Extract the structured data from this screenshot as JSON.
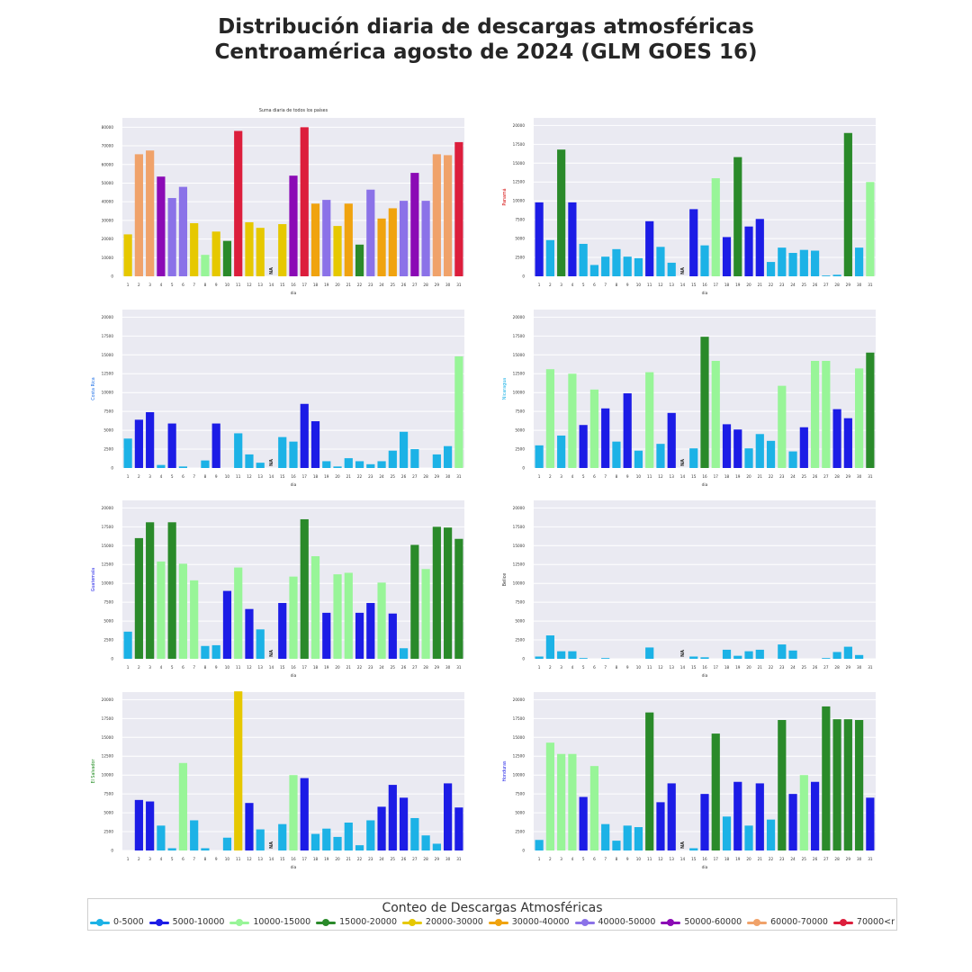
{
  "title": {
    "line1": "Distribución diaria de descargas atmosféricas",
    "line2": "Centroamérica agosto de 2024 (GLM GOES 16)"
  },
  "legend": {
    "title": "Conteo de Descargas Atmosféricas",
    "items": [
      {
        "label": "0-5000",
        "color": "#1cb2e6"
      },
      {
        "label": "5000-10000",
        "color": "#1c1ce6"
      },
      {
        "label": "10000-15000",
        "color": "#98f598"
      },
      {
        "label": "15000-20000",
        "color": "#2a8a2a"
      },
      {
        "label": "20000-30000",
        "color": "#e6c800"
      },
      {
        "label": "30000-40000",
        "color": "#f0a30f"
      },
      {
        "label": "40000-50000",
        "color": "#8b72e8"
      },
      {
        "label": "50000-60000",
        "color": "#8b0ab5"
      },
      {
        "label": "60000-70000",
        "color": "#f0a26a"
      },
      {
        "label": "70000<r",
        "color": "#dc1e3c"
      }
    ]
  },
  "chart_data": [
    {
      "type": "bar",
      "title": "Suma diaria de todos los países",
      "xlabel": "dia",
      "ylabel": "",
      "ylabel_color": "",
      "ylim": [
        0,
        85000
      ],
      "yticks": [
        0,
        10000,
        20000,
        30000,
        40000,
        50000,
        60000,
        70000,
        80000
      ],
      "categories": [
        "1",
        "2",
        "3",
        "4",
        "5",
        "6",
        "7",
        "8",
        "9",
        "10",
        "11",
        "12",
        "13",
        "14",
        "15",
        "16",
        "17",
        "18",
        "19",
        "20",
        "21",
        "22",
        "23",
        "24",
        "25",
        "26",
        "27",
        "28",
        "29",
        "30",
        "31"
      ],
      "values": [
        22500,
        65500,
        67500,
        53500,
        42000,
        48000,
        28500,
        11500,
        24000,
        19000,
        78000,
        29000,
        26000,
        null,
        28000,
        54000,
        80000,
        39000,
        41000,
        27000,
        39000,
        17000,
        46500,
        31000,
        36500,
        40500,
        55500,
        40500,
        65500,
        65000,
        72000
      ],
      "na_labels": [
        {
          "day": "14",
          "text": "NA"
        }
      ],
      "grid": true
    },
    {
      "type": "bar",
      "title": "",
      "xlabel": "dia",
      "ylabel": "Panamá",
      "ylabel_color": "#d40000",
      "ylim": [
        0,
        21000
      ],
      "yticks": [
        0,
        2500,
        5000,
        7500,
        10000,
        12500,
        15000,
        17500,
        20000
      ],
      "categories": [
        "1",
        "2",
        "3",
        "4",
        "5",
        "6",
        "7",
        "8",
        "9",
        "10",
        "11",
        "12",
        "13",
        "14",
        "15",
        "16",
        "17",
        "18",
        "19",
        "20",
        "21",
        "22",
        "23",
        "24",
        "25",
        "26",
        "27",
        "28",
        "29",
        "30",
        "31"
      ],
      "values": [
        9800,
        4800,
        16800,
        9800,
        4300,
        1500,
        2600,
        3600,
        2600,
        2400,
        7300,
        3900,
        1800,
        null,
        8900,
        4100,
        13000,
        5200,
        15800,
        6600,
        7600,
        1900,
        3800,
        3100,
        3500,
        3400,
        100,
        200,
        19000,
        3800,
        12500
      ],
      "na_labels": [
        {
          "day": "14",
          "text": "NA"
        }
      ],
      "grid": true
    },
    {
      "type": "bar",
      "title": "",
      "xlabel": "dia",
      "ylabel": "Costa Rica",
      "ylabel_color": "#1c6ee6",
      "ylim": [
        0,
        21000
      ],
      "yticks": [
        0,
        2500,
        5000,
        7500,
        10000,
        12500,
        15000,
        17500,
        20000
      ],
      "categories": [
        "1",
        "2",
        "3",
        "4",
        "5",
        "6",
        "7",
        "8",
        "9",
        "10",
        "11",
        "12",
        "13",
        "14",
        "15",
        "16",
        "17",
        "18",
        "19",
        "20",
        "21",
        "22",
        "23",
        "24",
        "25",
        "26",
        "27",
        "28",
        "29",
        "30",
        "31"
      ],
      "values": [
        3900,
        6400,
        7400,
        400,
        5900,
        200,
        0,
        1000,
        5900,
        0,
        4600,
        1800,
        700,
        null,
        4100,
        3500,
        8500,
        6200,
        900,
        200,
        1300,
        900,
        500,
        900,
        2300,
        4800,
        2500,
        0,
        1800,
        2900,
        14800
      ],
      "na_labels": [
        {
          "day": "14",
          "text": "NA"
        }
      ],
      "grid": true
    },
    {
      "type": "bar",
      "title": "",
      "xlabel": "dia",
      "ylabel": "Nicaragua",
      "ylabel_color": "#1cb2e6",
      "ylim": [
        0,
        21000
      ],
      "yticks": [
        0,
        2500,
        5000,
        7500,
        10000,
        12500,
        15000,
        17500,
        20000
      ],
      "categories": [
        "1",
        "2",
        "3",
        "4",
        "5",
        "6",
        "7",
        "8",
        "9",
        "10",
        "11",
        "12",
        "13",
        "14",
        "15",
        "16",
        "17",
        "18",
        "19",
        "20",
        "21",
        "22",
        "23",
        "24",
        "25",
        "26",
        "27",
        "28",
        "29",
        "30",
        "31"
      ],
      "values": [
        3000,
        13100,
        4300,
        12500,
        5700,
        10400,
        7900,
        3500,
        9900,
        2300,
        12700,
        3200,
        7300,
        null,
        2600,
        17400,
        14200,
        5800,
        5100,
        2600,
        4500,
        3600,
        10900,
        2200,
        5400,
        14200,
        14200,
        7800,
        6600,
        13200,
        15300
      ],
      "na_labels": [
        {
          "day": "14",
          "text": "NA"
        }
      ],
      "grid": true
    },
    {
      "type": "bar",
      "title": "",
      "xlabel": "dia",
      "ylabel": "Guatemala",
      "ylabel_color": "#1c1ce6",
      "ylim": [
        0,
        21000
      ],
      "yticks": [
        0,
        2500,
        5000,
        7500,
        10000,
        12500,
        15000,
        17500,
        20000
      ],
      "categories": [
        "1",
        "2",
        "3",
        "4",
        "5",
        "6",
        "7",
        "8",
        "9",
        "10",
        "11",
        "12",
        "13",
        "14",
        "15",
        "16",
        "17",
        "18",
        "19",
        "20",
        "21",
        "22",
        "23",
        "24",
        "25",
        "26",
        "27",
        "28",
        "29",
        "30",
        "31"
      ],
      "values": [
        3600,
        16000,
        18100,
        12900,
        18100,
        12600,
        10400,
        1700,
        1800,
        9000,
        12100,
        6600,
        3900,
        null,
        7400,
        10900,
        18500,
        13600,
        6100,
        11200,
        11400,
        6100,
        7400,
        10100,
        6000,
        1400,
        15100,
        11900,
        17500,
        17400,
        15900
      ],
      "na_labels": [
        {
          "day": "14",
          "text": "NA"
        }
      ],
      "grid": true
    },
    {
      "type": "bar",
      "title": "",
      "xlabel": "dia",
      "ylabel": "Belice",
      "ylabel_color": "#333333",
      "ylim": [
        0,
        21000
      ],
      "yticks": [
        0,
        2500,
        5000,
        7500,
        10000,
        12500,
        15000,
        17500,
        20000
      ],
      "categories": [
        "1",
        "2",
        "3",
        "4",
        "5",
        "6",
        "7",
        "8",
        "9",
        "10",
        "11",
        "12",
        "13",
        "14",
        "15",
        "16",
        "17",
        "18",
        "19",
        "20",
        "21",
        "22",
        "23",
        "24",
        "25",
        "26",
        "27",
        "28",
        "29",
        "30",
        "31"
      ],
      "values": [
        300,
        3100,
        1000,
        1000,
        100,
        0,
        100,
        0,
        0,
        0,
        1500,
        0,
        0,
        null,
        300,
        200,
        0,
        1200,
        400,
        1000,
        1200,
        0,
        1900,
        1100,
        0,
        0,
        100,
        900,
        1600,
        500,
        0
      ],
      "na_labels": [
        {
          "day": "14",
          "text": "NA"
        }
      ],
      "grid": true
    },
    {
      "type": "bar",
      "title": "",
      "xlabel": "dia",
      "ylabel": "El Salvador",
      "ylabel_color": "#1c8a1c",
      "ylim": [
        0,
        21000
      ],
      "yticks": [
        0,
        2500,
        5000,
        7500,
        10000,
        12500,
        15000,
        17500,
        20000
      ],
      "categories": [
        "1",
        "2",
        "3",
        "4",
        "5",
        "6",
        "7",
        "8",
        "9",
        "10",
        "11",
        "12",
        "13",
        "14",
        "15",
        "16",
        "17",
        "18",
        "19",
        "20",
        "21",
        "22",
        "23",
        "24",
        "25",
        "26",
        "27",
        "28",
        "29",
        "30",
        "31"
      ],
      "values": [
        0,
        6700,
        6500,
        3300,
        300,
        11600,
        4000,
        300,
        0,
        1700,
        21100,
        6300,
        2800,
        null,
        3500,
        10000,
        9600,
        2200,
        2900,
        1800,
        3700,
        700,
        4000,
        5800,
        8700,
        7000,
        4300,
        2000,
        900,
        8900,
        5700
      ],
      "na_labels": [
        {
          "day": "14",
          "text": "NA"
        }
      ],
      "grid": true
    },
    {
      "type": "bar",
      "title": "",
      "xlabel": "dia",
      "ylabel": "Honduras",
      "ylabel_color": "#1c1ce6",
      "ylim": [
        0,
        21000
      ],
      "yticks": [
        0,
        2500,
        5000,
        7500,
        10000,
        12500,
        15000,
        17500,
        20000
      ],
      "categories": [
        "1",
        "2",
        "3",
        "4",
        "5",
        "6",
        "7",
        "8",
        "9",
        "10",
        "11",
        "12",
        "13",
        "14",
        "15",
        "16",
        "17",
        "18",
        "19",
        "20",
        "21",
        "22",
        "23",
        "24",
        "25",
        "26",
        "27",
        "28",
        "29",
        "30",
        "31"
      ],
      "values": [
        1400,
        14300,
        12800,
        12800,
        7100,
        11200,
        3500,
        1300,
        3300,
        3100,
        18300,
        6400,
        8900,
        null,
        300,
        7500,
        15500,
        4500,
        9100,
        3300,
        8900,
        4100,
        17300,
        7500,
        10000,
        9100,
        19100,
        17400,
        17400,
        17300,
        7000
      ],
      "na_labels": [
        {
          "day": "14",
          "text": "NA"
        }
      ],
      "grid": true
    }
  ]
}
